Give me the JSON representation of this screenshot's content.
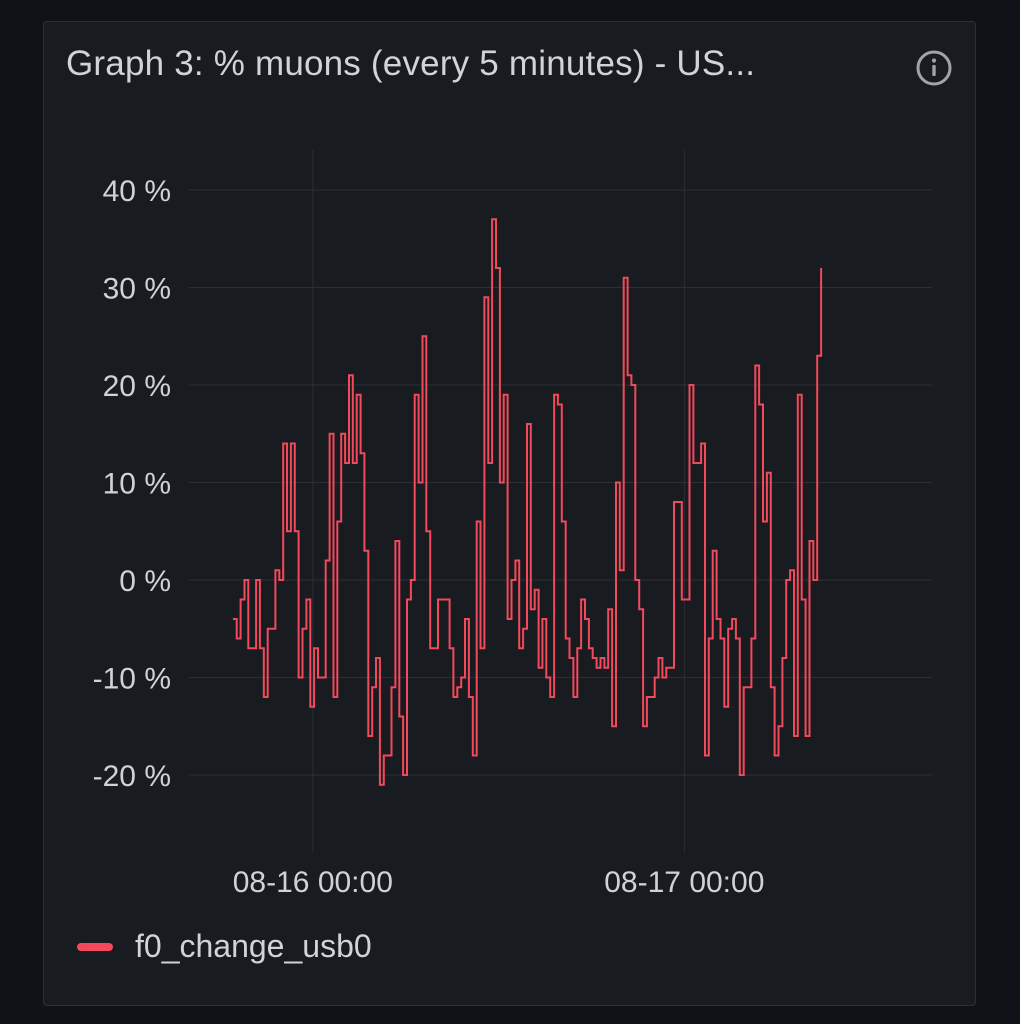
{
  "panel": {
    "title": "Graph 3: % muons (every 5 minutes) - US...",
    "info_icon": "info-circle-icon"
  },
  "colors": {
    "background": "#111217",
    "panel": "#181b1f",
    "grid": "#2c2f36",
    "text": "#cfd2d8",
    "series": "#f2495c"
  },
  "chart_data": {
    "type": "line",
    "line_style": "step",
    "grid": true,
    "legend_position": "bottom-left",
    "xlabel": "",
    "ylabel": "",
    "y_unit": "%",
    "ylim": [
      -30,
      44
    ],
    "y_ticks": [
      40,
      30,
      20,
      10,
      0,
      -10,
      -20
    ],
    "y_tick_labels": [
      "40 %",
      "30 %",
      "20 %",
      "10 %",
      "0 %",
      "-10 %",
      "-20 %"
    ],
    "xlim": [
      "2023-08-15 16:00",
      "2023-08-17 16:00"
    ],
    "x_ticks": [
      "2023-08-16 00:00",
      "2023-08-17 00:00"
    ],
    "x_tick_labels": [
      "08-16 00:00",
      "08-17 00:00"
    ],
    "series": [
      {
        "name": "f0_change_usb0",
        "color": "#f2495c",
        "start": "2023-08-15 18:50",
        "interval_minutes": 15,
        "values": [
          -4,
          -6,
          -2,
          0,
          -7,
          -7,
          0,
          -7,
          -12,
          -5,
          -5,
          1,
          0,
          14,
          5,
          14,
          5,
          -10,
          -5,
          -2,
          -13,
          -7,
          -10,
          -10,
          2,
          15,
          -12,
          6,
          15,
          12,
          21,
          12,
          19,
          13,
          3,
          -16,
          -11,
          -8,
          -21,
          -18,
          -18,
          -11,
          4,
          -14,
          -20,
          -2,
          0,
          19,
          10,
          25,
          5,
          -7,
          -7,
          -2,
          -2,
          -2,
          -7,
          -12,
          -11,
          -10,
          -4,
          -12,
          -18,
          6,
          -7,
          29,
          12,
          37,
          32,
          10,
          19,
          -4,
          0,
          2,
          -7,
          -5,
          16,
          -3,
          -1,
          -9,
          -4,
          -10,
          -12,
          19,
          18,
          6,
          -6,
          -8,
          -12,
          -7,
          -2,
          -4,
          -7,
          -8,
          -9,
          -8,
          -9,
          -3,
          -15,
          10,
          1,
          31,
          21,
          20,
          0,
          -3,
          -15,
          -12,
          -12,
          -10,
          -8,
          -10,
          -9,
          -9,
          8,
          8,
          -2,
          -2,
          20,
          12,
          12,
          14,
          -18,
          -6,
          3,
          -4,
          -6,
          -13,
          -5,
          -4,
          -6,
          -20,
          -11,
          -11,
          -6,
          22,
          18,
          6,
          11,
          -11,
          -18,
          -15,
          -8,
          0,
          1,
          -16,
          19,
          -2,
          -16,
          4,
          0,
          23,
          32
        ]
      }
    ]
  }
}
